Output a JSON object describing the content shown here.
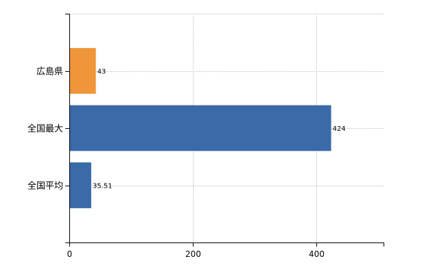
{
  "chart_data": {
    "type": "bar",
    "orientation": "horizontal",
    "categories": [
      "広島県",
      "全国最大",
      "全国平均"
    ],
    "values": [
      43,
      424,
      35.51
    ],
    "value_labels": [
      "43",
      "424",
      "35.51"
    ],
    "colors": [
      "#f0963a",
      "#3a6aa8",
      "#3a6aa8"
    ],
    "xlim": [
      0,
      510
    ],
    "x_ticks": [
      0,
      200,
      400
    ],
    "x_tick_labels": [
      "0",
      "200",
      "400"
    ],
    "grid": true,
    "title": "",
    "xlabel": "",
    "ylabel": ""
  }
}
